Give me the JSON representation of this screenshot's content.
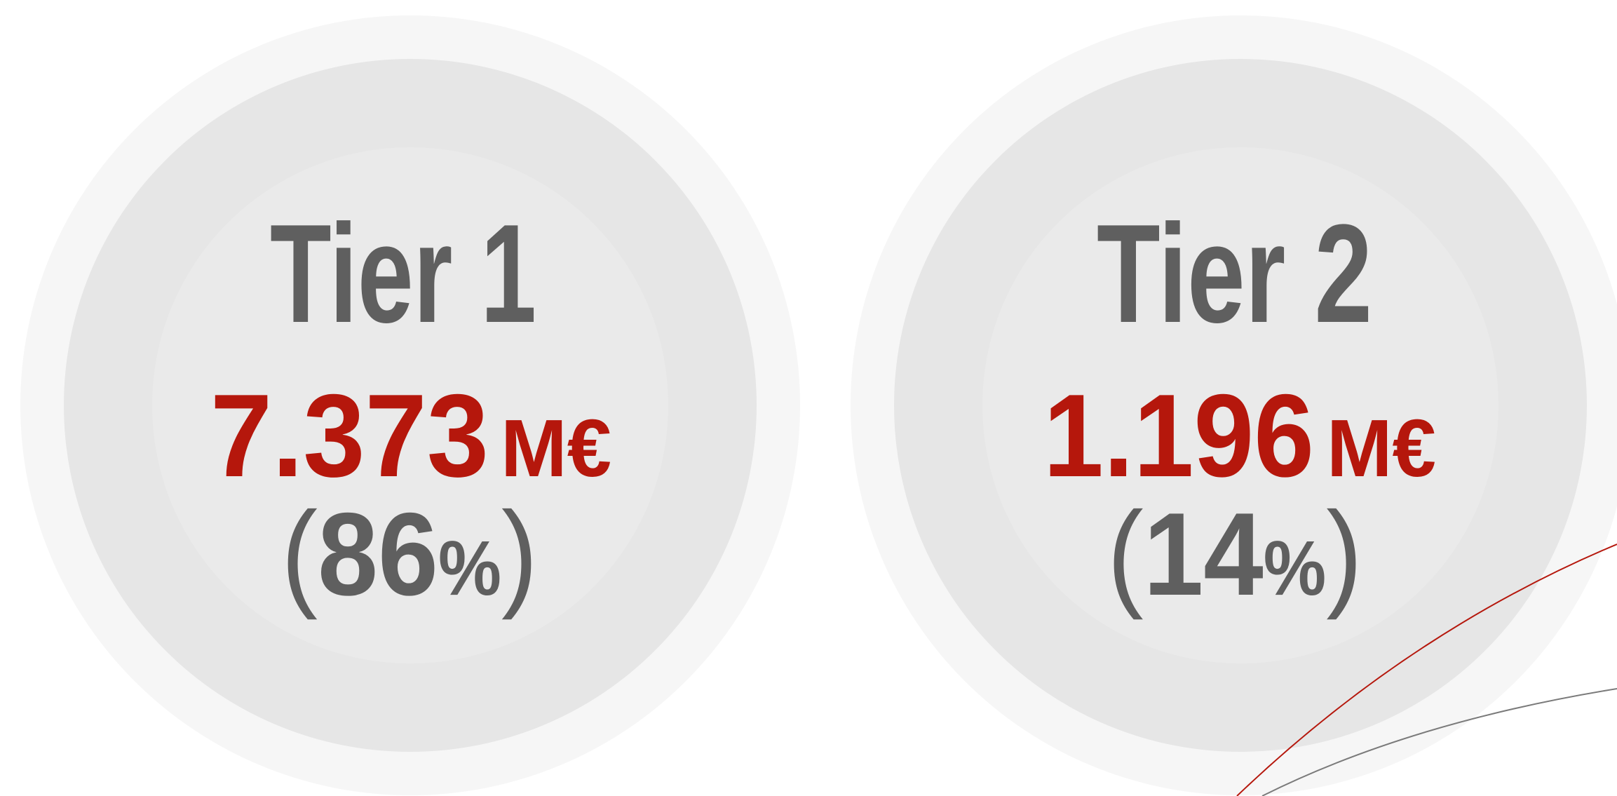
{
  "tiers": [
    {
      "title": "Tier 1",
      "value": "7.373",
      "unit": "M€",
      "share": {
        "open": "(",
        "value": "86",
        "unit": "%",
        "close": ")"
      }
    },
    {
      "title": "Tier 2",
      "value": "1.196",
      "unit": "M€",
      "share": {
        "open": "(",
        "value": "14",
        "unit": "%",
        "close": ")"
      }
    }
  ]
}
